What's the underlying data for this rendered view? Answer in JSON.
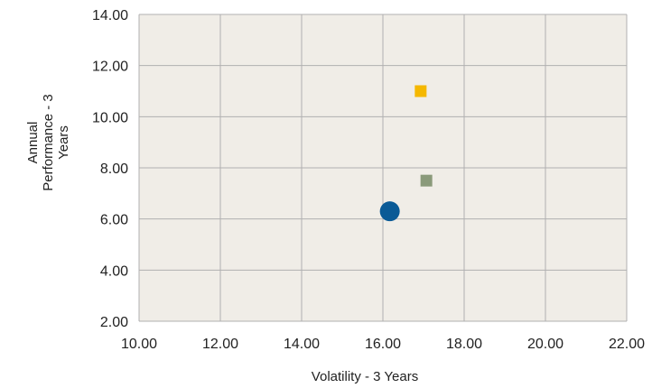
{
  "chart_data": {
    "type": "scatter",
    "xlabel": "Volatility - 3 Years",
    "ylabel_lines": [
      "Annual",
      "Performance - 3",
      "Years"
    ],
    "xlim": [
      10,
      22
    ],
    "ylim": [
      2,
      14
    ],
    "x_ticks": [
      10,
      12,
      14,
      16,
      18,
      20,
      22
    ],
    "y_ticks": [
      2,
      4,
      6,
      8,
      10,
      12,
      14
    ],
    "x_tick_labels": [
      "10.00",
      "12.00",
      "14.00",
      "16.00",
      "18.00",
      "20.00",
      "22.00"
    ],
    "y_tick_labels": [
      "2.00",
      "4.00",
      "6.00",
      "8.00",
      "10.00",
      "12.00",
      "14.00"
    ],
    "grid": true,
    "plot_background": "#f0ede7",
    "grid_color": "#b0b0b0",
    "points": [
      {
        "x": 16.17,
        "y": 6.3,
        "marker": "circle",
        "color": "#0a5a96"
      },
      {
        "x": 16.93,
        "y": 11.0,
        "marker": "square",
        "color": "#f5b800"
      },
      {
        "x": 17.07,
        "y": 7.5,
        "marker": "square",
        "color": "#8a9a7a"
      }
    ]
  }
}
